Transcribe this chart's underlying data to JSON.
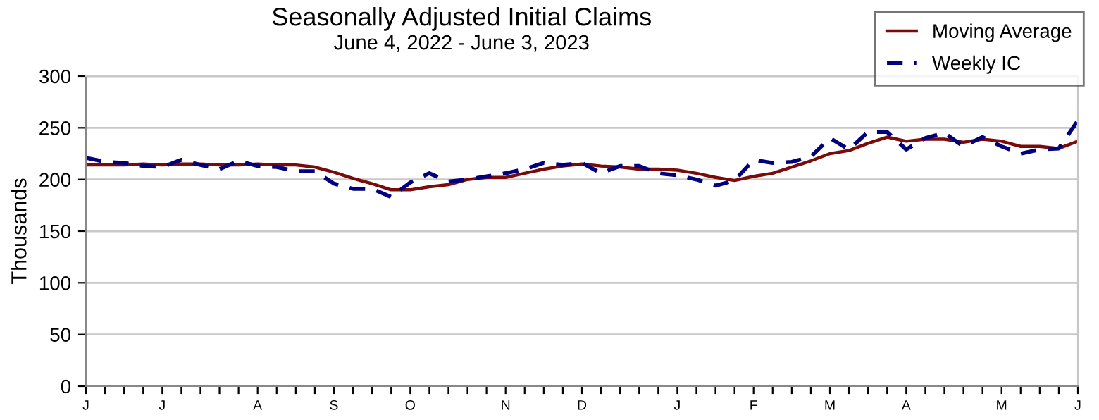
{
  "chart_data": {
    "type": "line",
    "title": "Seasonally Adjusted Initial Claims",
    "subtitle": "June 4, 2022 - June 3, 2023",
    "ylabel": "Thousands",
    "categories": [
      "J",
      null,
      null,
      null,
      "J",
      null,
      null,
      null,
      null,
      "A",
      null,
      null,
      null,
      "S",
      null,
      null,
      null,
      "O",
      null,
      null,
      null,
      null,
      "N",
      null,
      null,
      null,
      "D",
      null,
      null,
      null,
      null,
      "J",
      null,
      null,
      null,
      "F",
      null,
      null,
      null,
      "M",
      null,
      null,
      null,
      "A",
      null,
      null,
      null,
      null,
      "M",
      null,
      null,
      null,
      "J"
    ],
    "series": [
      {
        "name": "Moving Average",
        "color": "#7b0a0a",
        "line_style": "solid",
        "values": [
          214,
          214,
          214,
          215,
          214,
          215,
          215,
          214,
          214,
          215,
          214,
          214,
          212,
          207,
          201,
          196,
          190,
          190,
          193,
          195,
          200,
          202,
          202,
          206,
          210,
          213,
          215,
          213,
          212,
          210,
          210,
          209,
          206,
          202,
          199,
          203,
          206,
          212,
          218,
          225,
          228,
          235,
          241,
          237,
          239,
          239,
          236,
          239,
          237,
          232,
          232,
          230,
          237
        ]
      },
      {
        "name": "Weekly IC",
        "color": "#00007f",
        "line_style": "dashed",
        "values": [
          221,
          217,
          216,
          213,
          212,
          219,
          214,
          210,
          218,
          213,
          212,
          208,
          208,
          196,
          191,
          191,
          183,
          197,
          206,
          198,
          200,
          203,
          206,
          210,
          216,
          214,
          216,
          206,
          213,
          213,
          206,
          204,
          200,
          194,
          199,
          219,
          216,
          217,
          222,
          240,
          229,
          246,
          246,
          229,
          240,
          245,
          232,
          241,
          232,
          225,
          229,
          230,
          257
        ]
      }
    ],
    "ylim": [
      0,
      300
    ],
    "yticks": [
      0,
      50,
      100,
      150,
      200,
      250,
      300
    ],
    "grid": "y",
    "legend": "top right"
  }
}
